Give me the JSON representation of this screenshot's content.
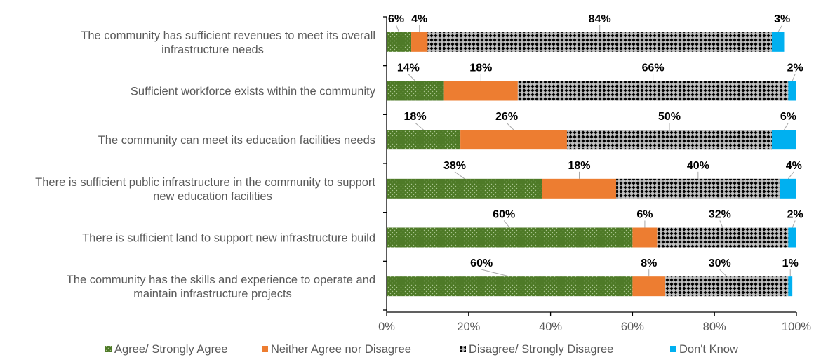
{
  "chart_data": {
    "type": "bar",
    "orientation": "horizontal",
    "stacked": true,
    "title": "",
    "xlabel": "",
    "ylabel": "",
    "xlim": [
      0,
      100
    ],
    "x_ticks": [
      "0%",
      "20%",
      "40%",
      "60%",
      "80%",
      "100%"
    ],
    "x_tick_values": [
      0,
      20,
      40,
      60,
      80,
      100
    ],
    "grid": false,
    "legend_position": "bottom",
    "categories": [
      [
        "The community has sufficient revenues to meet its overall",
        "infrastructure needs"
      ],
      [
        "Sufficient workforce exists within the community"
      ],
      [
        "The community can meet its education facilities needs"
      ],
      [
        "There is sufficient public infrastructure in the community to support",
        "new education facilities"
      ],
      [
        "There is sufficient land to support new infrastructure build"
      ],
      [
        "The community has the skills and experience to operate and",
        "maintain infrastructure projects"
      ]
    ],
    "series": [
      {
        "name": "Agree/ Strongly Agree",
        "color": "#4E7A27",
        "pattern": "dots",
        "values": [
          6,
          14,
          18,
          38,
          60,
          60
        ]
      },
      {
        "name": "Neither Agree nor Disagree",
        "color": "#ED7D31",
        "pattern": "solid",
        "values": [
          4,
          18,
          26,
          18,
          6,
          8
        ]
      },
      {
        "name": "Disagree/ Strongly Disagree",
        "color": "#BFBFBF",
        "pattern": "diamonds",
        "values": [
          84,
          66,
          50,
          40,
          32,
          30
        ]
      },
      {
        "name": "Don't Know",
        "color": "#00B0F0",
        "pattern": "solid",
        "values": [
          3,
          2,
          6,
          4,
          2,
          1
        ]
      }
    ],
    "data_labels": [
      [
        "6%",
        "4%",
        "84%",
        "3%"
      ],
      [
        "14%",
        "18%",
        "66%",
        "2%"
      ],
      [
        "18%",
        "26%",
        "50%",
        "6%"
      ],
      [
        "38%",
        "18%",
        "40%",
        "4%"
      ],
      [
        "60%",
        "6%",
        "32%",
        "2%"
      ],
      [
        "60%",
        "8%",
        "30%",
        "1%"
      ]
    ]
  }
}
